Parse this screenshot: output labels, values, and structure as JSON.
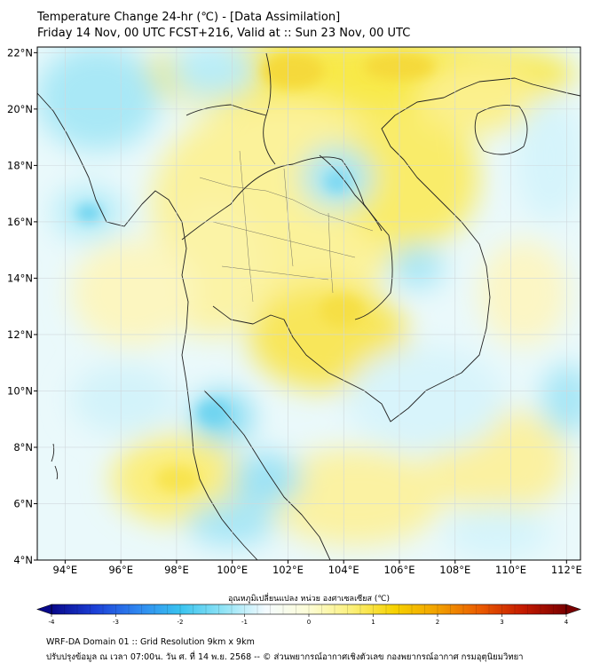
{
  "title": {
    "line1": "Temperature Change 24-hr (℃) - [Data Assimilation]",
    "line2": "Friday 14 Nov, 00 UTC FCST+216, Valid at :: Sun 23 Nov, 00 UTC"
  },
  "map": {
    "lon_labels": [
      "94°E",
      "96°E",
      "98°E",
      "100°E",
      "102°E",
      "104°E",
      "106°E",
      "108°E",
      "110°E",
      "112°E"
    ],
    "lat_labels": [
      "22°N",
      "20°N",
      "18°N",
      "16°N",
      "14°N",
      "12°N",
      "10°N",
      "8°N",
      "6°N",
      "4°N"
    ],
    "lon_values": [
      94,
      96,
      98,
      100,
      102,
      104,
      106,
      108,
      110,
      112
    ],
    "lat_values": [
      22,
      20,
      18,
      16,
      14,
      12,
      10,
      8,
      6,
      4
    ],
    "extent": {
      "lon_min": 93,
      "lon_max": 112.5,
      "lat_min": 4,
      "lat_max": 22.2
    }
  },
  "colorbar": {
    "label": "อุณหภูมิเปลี่ยนแปลง หน่วย องศาเซลเซียส (℃)",
    "range": [
      -4,
      4
    ],
    "tick_values": [
      -4,
      -3,
      -2,
      -1,
      0,
      1,
      2,
      3,
      4
    ],
    "tick_labels": [
      "-4",
      "-3",
      "-2",
      "-1",
      "0",
      "1",
      "2",
      "3",
      "4"
    ],
    "colors": [
      "#08088a",
      "#1c3fd6",
      "#2f86f0",
      "#39c3ef",
      "#8fe3f5",
      "#f4fbff",
      "#fdfdd6",
      "#fbf07a",
      "#f6d200",
      "#f2a100",
      "#ea5a00",
      "#c41a00",
      "#7a0000"
    ]
  },
  "footer": {
    "line1": "WRF-DA Domain 01 :: Grid Resolution 9km x 9km",
    "line2": "ปรับปรุงข้อมูล ณ เวลา 07:00น. วัน ศ. ที่ 14 พ.ย. 2568 -- © ส่วนพยากรณ์อากาศเชิงตัวเลข กองพยากรณ์อากาศ กรมอุตุนิยมวิทยา"
  }
}
